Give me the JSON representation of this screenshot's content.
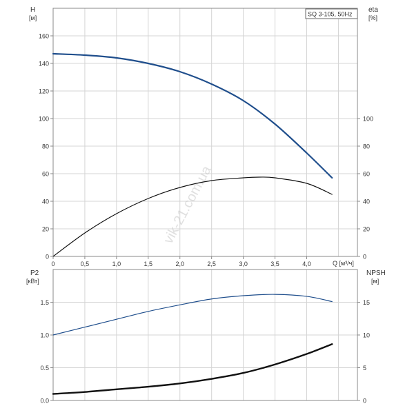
{
  "chart_data": [
    {
      "type": "line",
      "legend_label": "SQ 3-105, 50Hz",
      "xlabel": "Q [м³/ч]",
      "xlim": [
        0,
        4.8
      ],
      "x_ticks": [
        "0",
        "0,5",
        "1,0",
        "1,5",
        "2,0",
        "2,5",
        "3,0",
        "3,5",
        "4,0"
      ],
      "grid": true,
      "y_left": {
        "label_line1": "H",
        "label_line2": "[м]",
        "lim": [
          0,
          180
        ],
        "ticks": [
          "0",
          "20",
          "40",
          "60",
          "80",
          "100",
          "120",
          "140",
          "160"
        ]
      },
      "y_right": {
        "label_line1": "eta",
        "label_line2": "[%]",
        "lim": [
          0,
          180
        ],
        "ticks": [
          "0",
          "20",
          "40",
          "60",
          "80",
          "100"
        ]
      },
      "series": [
        {
          "axis": "left",
          "color": "#1f4e8c",
          "x": [
            0,
            0.5,
            1.0,
            1.5,
            2.0,
            2.5,
            3.0,
            3.5,
            4.0,
            4.4
          ],
          "y": [
            147,
            146,
            144,
            140,
            134,
            125,
            113,
            96,
            75,
            57
          ]
        },
        {
          "axis": "right",
          "color": "#111111",
          "x": [
            0,
            0.5,
            1.0,
            1.5,
            2.0,
            2.5,
            3.0,
            3.25,
            3.5,
            4.0,
            4.4
          ],
          "y": [
            0,
            17,
            31,
            42,
            50,
            55,
            57,
            57.5,
            57,
            53,
            45
          ]
        }
      ]
    },
    {
      "type": "line",
      "xlim": [
        0,
        4.8
      ],
      "grid": true,
      "y_left": {
        "label_line1": "P2",
        "label_line2": "[кВт]",
        "lim": [
          0,
          2.0
        ],
        "ticks": [
          "0.0",
          "0.5",
          "1.0",
          "1.5"
        ]
      },
      "y_right": {
        "label_line1": "NPSH",
        "label_line2": "[м]",
        "lim": [
          0,
          20
        ],
        "ticks": [
          "0",
          "5",
          "10",
          "15"
        ]
      },
      "series": [
        {
          "axis": "left",
          "color": "#1f4e8c",
          "x": [
            0,
            0.5,
            1.0,
            1.5,
            2.0,
            2.5,
            3.0,
            3.5,
            4.0,
            4.4
          ],
          "y": [
            1.0,
            1.12,
            1.24,
            1.36,
            1.46,
            1.55,
            1.6,
            1.62,
            1.59,
            1.51
          ]
        },
        {
          "axis": "right",
          "color": "#111111",
          "x": [
            0,
            0.5,
            1.0,
            1.5,
            2.0,
            2.5,
            3.0,
            3.5,
            4.0,
            4.4
          ],
          "y": [
            1.0,
            1.3,
            1.7,
            2.1,
            2.6,
            3.3,
            4.2,
            5.5,
            7.1,
            8.6
          ]
        }
      ]
    }
  ],
  "watermark": "vik-21.com.ua"
}
